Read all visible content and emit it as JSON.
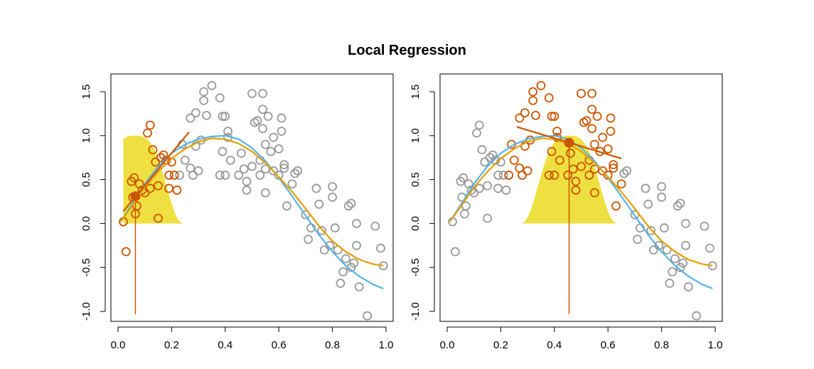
{
  "title": "Local Regression",
  "colors": {
    "points_gray": "#999999",
    "points_orange": "#CC5500",
    "kernel_fill": "#EEE040",
    "true_curve": "#56B4E9",
    "fit_curve": "#E69F00",
    "local_line": "#CC5500",
    "target_point": "#CC5500",
    "axis": "#000000"
  },
  "chart_data": [
    {
      "type": "scatter",
      "panel": "left",
      "title": "",
      "xlabel": "",
      "ylabel": "",
      "xlim": [
        0,
        1
      ],
      "ylim": [
        -1.1,
        1.6
      ],
      "xticks": [
        "0.0",
        "0.2",
        "0.4",
        "0.6",
        "0.8",
        "1.0"
      ],
      "yticks": [
        "-1.0",
        "-0.5",
        "0.0",
        "0.5",
        "1.0",
        "1.5"
      ],
      "target": {
        "x": 0.065,
        "y": 0.31
      },
      "local_line": {
        "x": [
          0.02,
          0.265
        ],
        "y": [
          0.14,
          1.04
        ]
      },
      "kernel": {
        "center": 0.065,
        "x_range": [
          0.02,
          0.25
        ],
        "height": 1.0
      },
      "true_curve": {
        "x": [
          0.01,
          0.05,
          0.1,
          0.15,
          0.2,
          0.25,
          0.3,
          0.35,
          0.4,
          0.45,
          0.5,
          0.55,
          0.6,
          0.65,
          0.7,
          0.75,
          0.8,
          0.85,
          0.9,
          0.95,
          0.99
        ],
        "y": [
          0.02,
          0.21,
          0.45,
          0.65,
          0.8,
          0.9,
          0.96,
          0.99,
          1.0,
          0.96,
          0.86,
          0.71,
          0.52,
          0.31,
          0.09,
          -0.13,
          -0.32,
          -0.48,
          -0.6,
          -0.69,
          -0.74
        ]
      },
      "fit_curve": {
        "x": [
          0.01,
          0.05,
          0.1,
          0.15,
          0.2,
          0.25,
          0.3,
          0.35,
          0.4,
          0.45,
          0.5,
          0.55,
          0.6,
          0.65,
          0.7,
          0.75,
          0.8,
          0.85,
          0.9,
          0.95,
          0.99
        ],
        "y": [
          0.02,
          0.19,
          0.41,
          0.59,
          0.74,
          0.85,
          0.93,
          0.97,
          0.96,
          0.91,
          0.82,
          0.69,
          0.53,
          0.36,
          0.17,
          -0.03,
          -0.2,
          -0.32,
          -0.41,
          -0.46,
          -0.48
        ]
      },
      "points_gray": [
        [
          0.23,
          0.55
        ],
        [
          0.24,
          0.9
        ],
        [
          0.25,
          0.72
        ],
        [
          0.27,
          0.63
        ],
        [
          0.27,
          1.2
        ],
        [
          0.28,
          0.55
        ],
        [
          0.29,
          0.88
        ],
        [
          0.29,
          1.26
        ],
        [
          0.3,
          0.6
        ],
        [
          0.31,
          0.95
        ],
        [
          0.32,
          1.5
        ],
        [
          0.32,
          1.4
        ],
        [
          0.33,
          1.23
        ],
        [
          0.35,
          1.57
        ],
        [
          0.38,
          1.43
        ],
        [
          0.38,
          0.55
        ],
        [
          0.39,
          1.22
        ],
        [
          0.39,
          0.82
        ],
        [
          0.4,
          1.22
        ],
        [
          0.4,
          0.55
        ],
        [
          0.41,
          1.05
        ],
        [
          0.41,
          0.98
        ],
        [
          0.42,
          0.72
        ],
        [
          0.45,
          0.55
        ],
        [
          0.46,
          0.8
        ],
        [
          0.47,
          0.62
        ],
        [
          0.48,
          0.48
        ],
        [
          0.48,
          0.38
        ],
        [
          0.5,
          1.48
        ],
        [
          0.5,
          0.65
        ],
        [
          0.51,
          1.15
        ],
        [
          0.52,
          1.17
        ],
        [
          0.53,
          0.72
        ],
        [
          0.53,
          0.55
        ],
        [
          0.54,
          1.48
        ],
        [
          0.54,
          1.3
        ],
        [
          0.54,
          1.08
        ],
        [
          0.55,
          0.9
        ],
        [
          0.55,
          0.62
        ],
        [
          0.55,
          0.35
        ],
        [
          0.56,
          1.22
        ],
        [
          0.57,
          0.82
        ],
        [
          0.58,
          0.98
        ],
        [
          0.58,
          0.6
        ],
        [
          0.6,
          0.85
        ],
        [
          0.6,
          0.55
        ],
        [
          0.61,
          1.2
        ],
        [
          0.61,
          1.05
        ],
        [
          0.62,
          0.67
        ],
        [
          0.62,
          0.63
        ],
        [
          0.63,
          0.2
        ],
        [
          0.65,
          0.45
        ],
        [
          0.66,
          0.57
        ],
        [
          0.67,
          0.6
        ],
        [
          0.7,
          0.1
        ],
        [
          0.71,
          -0.18
        ],
        [
          0.72,
          -0.05
        ],
        [
          0.74,
          0.4
        ],
        [
          0.75,
          0.22
        ],
        [
          0.76,
          -0.08
        ],
        [
          0.77,
          -0.3
        ],
        [
          0.79,
          -0.25
        ],
        [
          0.8,
          0.42
        ],
        [
          0.8,
          0.3
        ],
        [
          0.81,
          -0.05
        ],
        [
          0.82,
          -0.3
        ],
        [
          0.83,
          -0.68
        ],
        [
          0.84,
          -0.55
        ],
        [
          0.85,
          -0.4
        ],
        [
          0.86,
          0.2
        ],
        [
          0.87,
          0.23
        ],
        [
          0.87,
          -0.5
        ],
        [
          0.88,
          -0.45
        ],
        [
          0.89,
          0.0
        ],
        [
          0.89,
          -0.25
        ],
        [
          0.9,
          -0.72
        ],
        [
          0.93,
          -1.05
        ],
        [
          0.96,
          -0.03
        ],
        [
          0.98,
          -0.28
        ],
        [
          0.99,
          -0.48
        ]
      ],
      "points_orange": [
        [
          0.02,
          0.02
        ],
        [
          0.03,
          -0.32
        ],
        [
          0.05,
          0.48
        ],
        [
          0.055,
          0.3
        ],
        [
          0.06,
          0.52
        ],
        [
          0.065,
          0.11
        ],
        [
          0.07,
          0.2
        ],
        [
          0.08,
          0.45
        ],
        [
          0.09,
          0.38
        ],
        [
          0.1,
          0.35
        ],
        [
          0.11,
          1.03
        ],
        [
          0.12,
          1.12
        ],
        [
          0.12,
          0.4
        ],
        [
          0.13,
          0.84
        ],
        [
          0.14,
          0.7
        ],
        [
          0.15,
          0.06
        ],
        [
          0.15,
          0.43
        ],
        [
          0.16,
          0.75
        ],
        [
          0.17,
          0.78
        ],
        [
          0.18,
          0.72
        ],
        [
          0.19,
          0.55
        ],
        [
          0.19,
          0.4
        ],
        [
          0.2,
          0.7
        ],
        [
          0.21,
          0.55
        ],
        [
          0.22,
          0.38
        ]
      ]
    },
    {
      "type": "scatter",
      "panel": "right",
      "title": "",
      "xlabel": "",
      "ylabel": "",
      "xlim": [
        0,
        1
      ],
      "ylim": [
        -1.1,
        1.6
      ],
      "xticks": [
        "0.0",
        "0.2",
        "0.4",
        "0.6",
        "0.8",
        "1.0"
      ],
      "yticks": [
        "-1.0",
        "-0.5",
        "0.0",
        "0.5",
        "1.0",
        "1.5"
      ],
      "target": {
        "x": 0.455,
        "y": 0.92
      },
      "local_line": {
        "x": [
          0.26,
          0.65
        ],
        "y": [
          1.1,
          0.74
        ]
      },
      "kernel": {
        "center": 0.455,
        "x_range": [
          0.27,
          0.64
        ],
        "height": 1.0
      },
      "true_curve": {
        "x": [
          0.01,
          0.05,
          0.1,
          0.15,
          0.2,
          0.25,
          0.3,
          0.35,
          0.4,
          0.45,
          0.5,
          0.55,
          0.6,
          0.65,
          0.7,
          0.75,
          0.8,
          0.85,
          0.9,
          0.95,
          0.99
        ],
        "y": [
          0.02,
          0.21,
          0.45,
          0.65,
          0.8,
          0.9,
          0.96,
          0.99,
          1.0,
          0.96,
          0.86,
          0.71,
          0.52,
          0.31,
          0.09,
          -0.13,
          -0.32,
          -0.48,
          -0.6,
          -0.69,
          -0.74
        ]
      },
      "fit_curve": {
        "x": [
          0.01,
          0.05,
          0.1,
          0.15,
          0.2,
          0.25,
          0.3,
          0.35,
          0.4,
          0.45,
          0.5,
          0.55,
          0.6,
          0.65,
          0.7,
          0.75,
          0.8,
          0.85,
          0.9,
          0.95,
          0.99
        ],
        "y": [
          0.02,
          0.19,
          0.41,
          0.59,
          0.74,
          0.85,
          0.93,
          0.97,
          0.96,
          0.91,
          0.82,
          0.69,
          0.53,
          0.36,
          0.17,
          -0.03,
          -0.2,
          -0.32,
          -0.41,
          -0.46,
          -0.48
        ]
      },
      "points_gray": [
        [
          0.02,
          0.02
        ],
        [
          0.03,
          -0.32
        ],
        [
          0.05,
          0.48
        ],
        [
          0.055,
          0.3
        ],
        [
          0.06,
          0.52
        ],
        [
          0.065,
          0.11
        ],
        [
          0.07,
          0.2
        ],
        [
          0.08,
          0.45
        ],
        [
          0.09,
          0.38
        ],
        [
          0.1,
          0.35
        ],
        [
          0.11,
          1.03
        ],
        [
          0.12,
          1.12
        ],
        [
          0.12,
          0.4
        ],
        [
          0.13,
          0.84
        ],
        [
          0.14,
          0.7
        ],
        [
          0.15,
          0.06
        ],
        [
          0.15,
          0.43
        ],
        [
          0.16,
          0.75
        ],
        [
          0.17,
          0.78
        ],
        [
          0.18,
          0.72
        ],
        [
          0.19,
          0.55
        ],
        [
          0.19,
          0.4
        ],
        [
          0.2,
          0.7
        ],
        [
          0.21,
          0.55
        ],
        [
          0.22,
          0.38
        ],
        [
          0.66,
          0.57
        ],
        [
          0.67,
          0.6
        ],
        [
          0.7,
          0.1
        ],
        [
          0.71,
          -0.18
        ],
        [
          0.72,
          -0.05
        ],
        [
          0.74,
          0.4
        ],
        [
          0.75,
          0.22
        ],
        [
          0.76,
          -0.08
        ],
        [
          0.77,
          -0.3
        ],
        [
          0.79,
          -0.25
        ],
        [
          0.8,
          0.42
        ],
        [
          0.8,
          0.3
        ],
        [
          0.81,
          -0.05
        ],
        [
          0.82,
          -0.3
        ],
        [
          0.83,
          -0.68
        ],
        [
          0.84,
          -0.55
        ],
        [
          0.85,
          -0.4
        ],
        [
          0.86,
          0.2
        ],
        [
          0.87,
          0.23
        ],
        [
          0.87,
          -0.5
        ],
        [
          0.88,
          -0.45
        ],
        [
          0.89,
          0.0
        ],
        [
          0.89,
          -0.25
        ],
        [
          0.9,
          -0.72
        ],
        [
          0.93,
          -1.05
        ],
        [
          0.96,
          -0.03
        ],
        [
          0.98,
          -0.28
        ],
        [
          0.99,
          -0.48
        ]
      ],
      "points_orange": [
        [
          0.23,
          0.55
        ],
        [
          0.24,
          0.9
        ],
        [
          0.25,
          0.72
        ],
        [
          0.27,
          0.63
        ],
        [
          0.27,
          1.2
        ],
        [
          0.28,
          0.55
        ],
        [
          0.29,
          0.88
        ],
        [
          0.29,
          1.26
        ],
        [
          0.3,
          0.6
        ],
        [
          0.31,
          0.95
        ],
        [
          0.32,
          1.5
        ],
        [
          0.32,
          1.4
        ],
        [
          0.33,
          1.23
        ],
        [
          0.35,
          1.57
        ],
        [
          0.38,
          1.43
        ],
        [
          0.38,
          0.55
        ],
        [
          0.39,
          1.22
        ],
        [
          0.39,
          0.82
        ],
        [
          0.4,
          1.22
        ],
        [
          0.4,
          0.55
        ],
        [
          0.41,
          1.05
        ],
        [
          0.41,
          0.98
        ],
        [
          0.42,
          0.72
        ],
        [
          0.45,
          0.55
        ],
        [
          0.46,
          0.8
        ],
        [
          0.47,
          0.62
        ],
        [
          0.48,
          0.48
        ],
        [
          0.48,
          0.38
        ],
        [
          0.5,
          1.48
        ],
        [
          0.5,
          0.65
        ],
        [
          0.51,
          1.15
        ],
        [
          0.52,
          1.17
        ],
        [
          0.53,
          0.72
        ],
        [
          0.53,
          0.55
        ],
        [
          0.54,
          1.48
        ],
        [
          0.54,
          1.3
        ],
        [
          0.54,
          1.08
        ],
        [
          0.55,
          0.9
        ],
        [
          0.55,
          0.62
        ],
        [
          0.55,
          0.35
        ],
        [
          0.56,
          1.22
        ],
        [
          0.57,
          0.82
        ],
        [
          0.58,
          0.98
        ],
        [
          0.58,
          0.6
        ],
        [
          0.6,
          0.85
        ],
        [
          0.6,
          0.55
        ],
        [
          0.61,
          1.2
        ],
        [
          0.61,
          1.05
        ],
        [
          0.62,
          0.67
        ],
        [
          0.62,
          0.63
        ],
        [
          0.63,
          0.2
        ],
        [
          0.65,
          0.45
        ]
      ]
    }
  ]
}
